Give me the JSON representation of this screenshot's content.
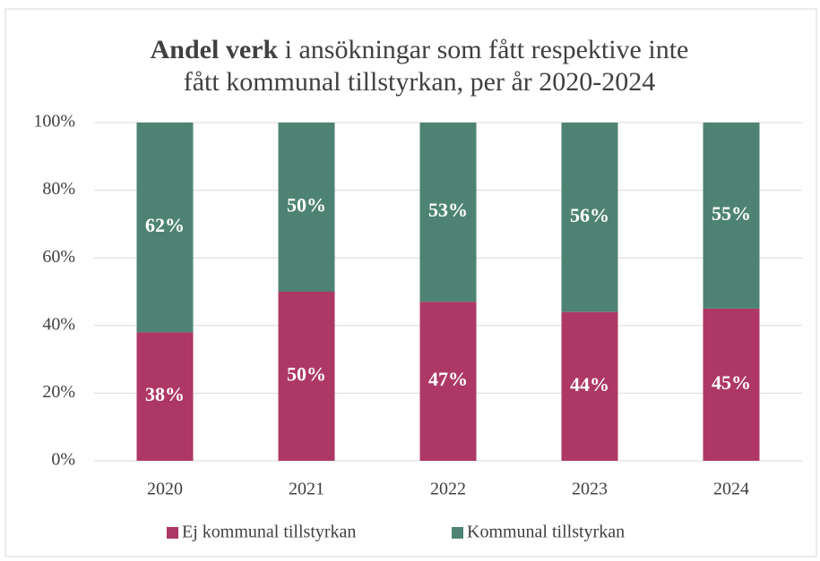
{
  "chart_data": {
    "type": "stacked_bar",
    "title": [
      "Andel verk",
      "i ansökningar som fått respektive inte",
      "fått kommunal tillstyrkan, per år 2020-2024"
    ],
    "categories": [
      "2020",
      "2021",
      "2022",
      "2023",
      "2024"
    ],
    "series": [
      {
        "name": "Ej kommunal tillstyrkan",
        "color": "#ad3866",
        "values": [
          38,
          50,
          47,
          44,
          45
        ],
        "value_labels": [
          "38%",
          "50%",
          "47%",
          "44%",
          "45%"
        ]
      },
      {
        "name": "Kommunal tillstyrkan",
        "color": "#4e8373",
        "values": [
          62,
          50,
          53,
          56,
          55
        ],
        "value_labels": [
          "62%",
          "50%",
          "53%",
          "56%",
          "55%"
        ]
      }
    ],
    "ylim": [
      0,
      100
    ],
    "yticks": [
      {
        "value": 0,
        "label": "0%"
      },
      {
        "value": 20,
        "label": "20%"
      },
      {
        "value": 40,
        "label": "40%"
      },
      {
        "value": 60,
        "label": "60%"
      },
      {
        "value": 80,
        "label": "80%"
      },
      {
        "value": 100,
        "label": "100%"
      }
    ],
    "grid": true,
    "legend": "bottom"
  }
}
